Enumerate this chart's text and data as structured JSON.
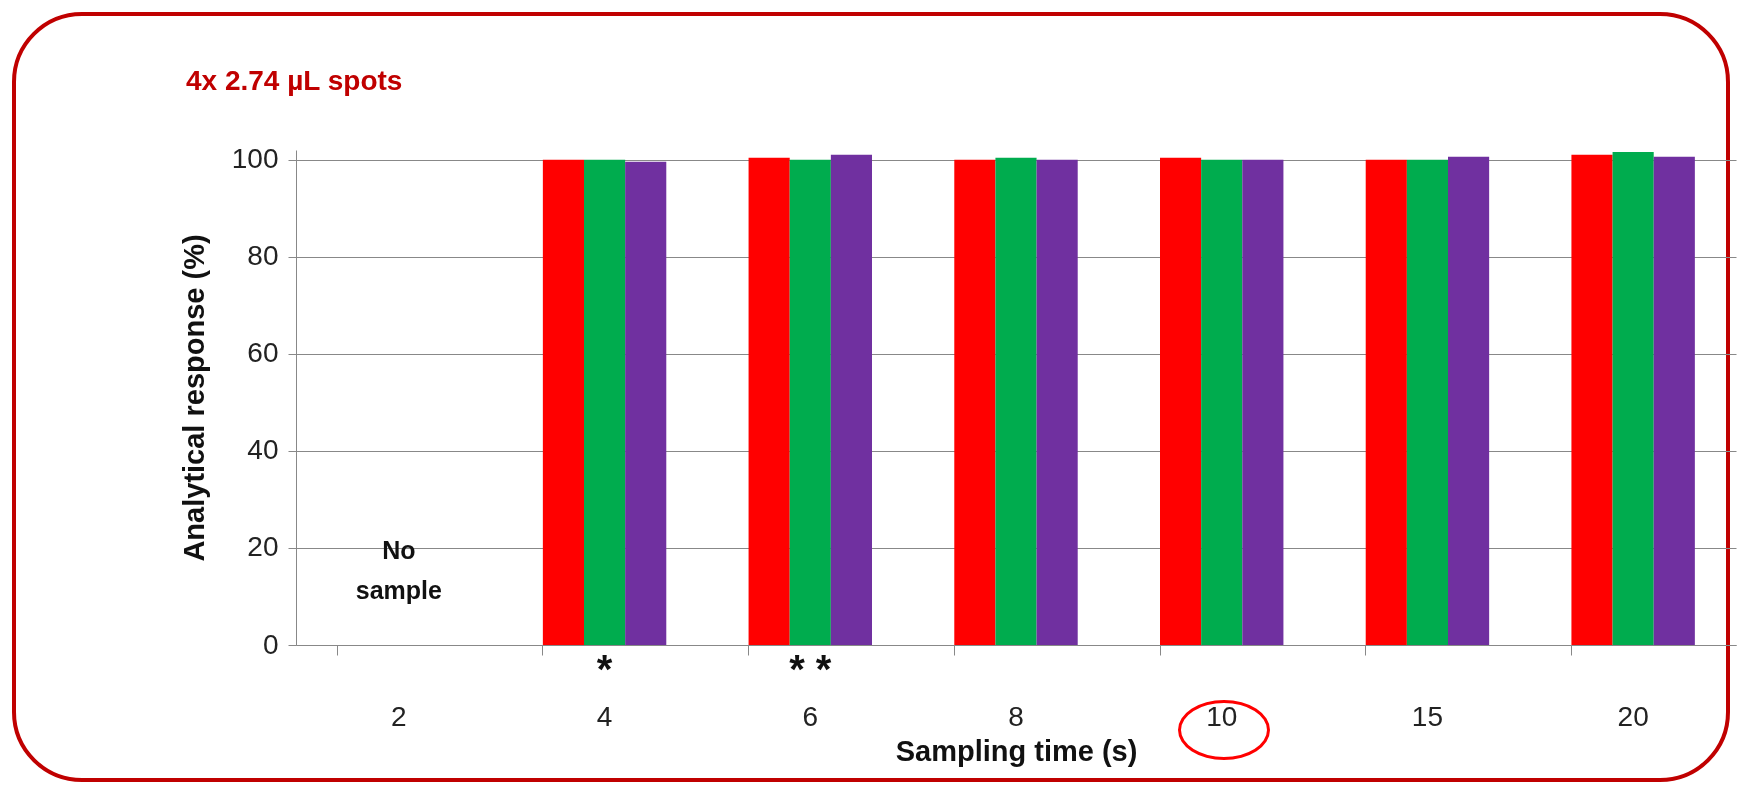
{
  "chart_data": {
    "type": "bar",
    "title": "4x 2.74 µL spots",
    "xlabel": "Sampling time (s)",
    "ylabel": "Analytical response (%)",
    "categories": [
      "2",
      "4",
      "6",
      "8",
      "10",
      "15",
      "20"
    ],
    "series": [
      {
        "color": "#ff0000",
        "values": [
          null,
          100,
          100.4,
          100,
          100.4,
          100,
          101
        ]
      },
      {
        "color": "#00ac4e",
        "values": [
          null,
          100,
          100,
          100.4,
          100,
          100,
          101.6
        ]
      },
      {
        "color": "#7030a0",
        "values": [
          null,
          99.6,
          101,
          100,
          100,
          100.6,
          100.6
        ]
      }
    ],
    "ylim": [
      0,
      102
    ],
    "yticks": [
      0,
      20,
      40,
      60,
      80,
      100
    ],
    "grid": "y",
    "legend": false,
    "annotations": [
      "No sample",
      "*",
      "* *"
    ]
  }
}
